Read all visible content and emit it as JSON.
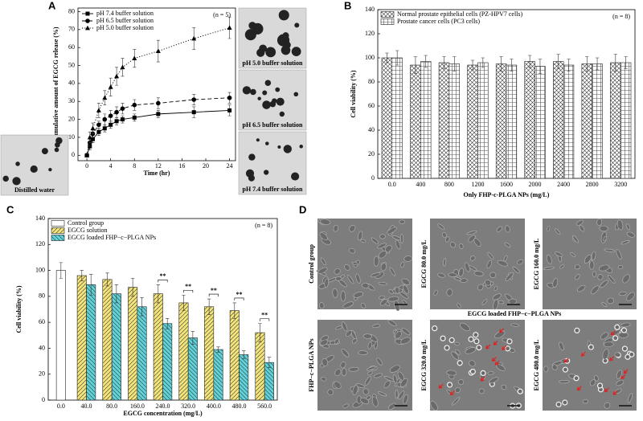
{
  "chart_data": [
    {
      "type": "line",
      "panel": "A",
      "xlabel": "Time (hr)",
      "ylabel": "Cumulative amount of EGCG release (%)",
      "note": "(n = 5)",
      "x": [
        0,
        0.5,
        1,
        2,
        3,
        4,
        5,
        6,
        8,
        12,
        18,
        24
      ],
      "xlim": [
        -1.5,
        25
      ],
      "xticks": [
        0,
        4,
        8,
        12,
        16,
        20,
        24
      ],
      "ylim": [
        -3,
        82
      ],
      "yticks": [
        0,
        10,
        20,
        30,
        40,
        50,
        60,
        70,
        80
      ],
      "legend": "upper left",
      "series": [
        {
          "name": "pH 7.4 buffer solution",
          "color": "#000000",
          "marker": "square",
          "dash": "solid",
          "values": [
            0,
            5,
            9,
            13,
            15,
            17,
            19,
            20,
            21,
            23,
            24,
            25
          ],
          "errors": [
            0,
            2,
            2,
            2,
            2,
            2,
            2,
            2,
            2,
            2,
            3,
            3
          ]
        },
        {
          "name": "pH 6.5 buffer solution",
          "color": "#000000",
          "marker": "circle",
          "dash": "dashed",
          "values": [
            0,
            7,
            12,
            17,
            20,
            22,
            24,
            26,
            28,
            29,
            31,
            32
          ],
          "errors": [
            0,
            2,
            2,
            2,
            3,
            3,
            3,
            3,
            3,
            3,
            3,
            3
          ]
        },
        {
          "name": "pH 5.0 buffer solution",
          "color": "#000000",
          "marker": "triangle",
          "dash": "dotted",
          "values": [
            0,
            10,
            15,
            25,
            32,
            38,
            44,
            49,
            54,
            58,
            65,
            71
          ],
          "errors": [
            0,
            3,
            3,
            4,
            4,
            5,
            5,
            5,
            5,
            6,
            6,
            6
          ]
        }
      ],
      "images": [
        {
          "caption": "pH 5.0 buffer solution"
        },
        {
          "caption": "pH 6.5 buffer solution"
        },
        {
          "caption": "pH 7.4 buffer solution"
        },
        {
          "caption": "Distilled water"
        }
      ]
    },
    {
      "type": "bar",
      "panel": "B",
      "xlabel": "Only FHP-c-PLGA NPs (mg/L)",
      "ylabel": "Cell viability (%)",
      "note": "(n = 8)",
      "categories": [
        "0.0",
        "400",
        "800",
        "1200",
        "1600",
        "2000",
        "2400",
        "2800",
        "3200"
      ],
      "ylim": [
        0,
        140
      ],
      "yticks": [
        0,
        20,
        40,
        60,
        80,
        100,
        120,
        140
      ],
      "legend": "upper left",
      "series": [
        {
          "name": "Normal prostate epithelial cells (PZ-HPV7 cells)",
          "color": "#ffffff",
          "hatch": "cross",
          "values": [
            100,
            94,
            96,
            94,
            95,
            97,
            97,
            95,
            96
          ],
          "errors": [
            4,
            7,
            5,
            4,
            6,
            5,
            6,
            6,
            7
          ]
        },
        {
          "name": "Prostate cancer cells (PC3 cells)",
          "color": "#ffffff",
          "hatch": "grid",
          "values": [
            100,
            97,
            95,
            96,
            94,
            93,
            94,
            95,
            96
          ],
          "errors": [
            6,
            5,
            6,
            4,
            5,
            6,
            5,
            5,
            5
          ]
        }
      ]
    },
    {
      "type": "bar",
      "panel": "C",
      "xlabel": "EGCG concentration (mg/L)",
      "ylabel": "Cell viability (%)",
      "note": "(n = 8)",
      "categories": [
        "0.0",
        "40.0",
        "80.0",
        "160.0",
        "240.0",
        "320.0",
        "400.0",
        "480.0",
        "560.0"
      ],
      "ylim": [
        0,
        140
      ],
      "yticks": [
        0,
        20,
        40,
        60,
        80,
        100,
        120,
        140
      ],
      "legend": "upper left",
      "series": [
        {
          "name": "Control group",
          "color": "#ffffff",
          "hatch": "none",
          "values": [
            100,
            null,
            null,
            null,
            null,
            null,
            null,
            null,
            null
          ],
          "errors": [
            6,
            null,
            null,
            null,
            null,
            null,
            null,
            null,
            null
          ]
        },
        {
          "name": "EGCG solution",
          "color": "#f3e57a",
          "hatch": "forward",
          "values": [
            null,
            96,
            93,
            87,
            82,
            75,
            72,
            69,
            52
          ],
          "errors": [
            null,
            4,
            5,
            7,
            7,
            6,
            6,
            6,
            7
          ]
        },
        {
          "name": "EGCG loaded FHP−c−PLGA NPs",
          "color": "#5fd3da",
          "hatch": "backward",
          "values": [
            null,
            89,
            82,
            72,
            59,
            48,
            39,
            35,
            29
          ],
          "errors": [
            null,
            8,
            7,
            7,
            4,
            5,
            2,
            3,
            4
          ]
        }
      ],
      "annotations": [
        {
          "text": "**",
          "category": "240.0"
        },
        {
          "text": "**",
          "category": "320.0"
        },
        {
          "text": "**",
          "category": "400.0"
        },
        {
          "text": "**",
          "category": "480.0"
        },
        {
          "text": "**",
          "category": "560.0"
        }
      ]
    }
  ],
  "micrographs": {
    "panel": "D",
    "heading": "EGCG loaded FHP−c−PLGA NPs",
    "images": [
      {
        "label": "Control group"
      },
      {
        "label": "EGCG 80.0 mg/L"
      },
      {
        "label": "EGCG 160.0 mg/L"
      },
      {
        "label": "FHP−c−PLGA NPs"
      },
      {
        "label": "EGCG 320.0 mg/L"
      },
      {
        "label": "EGCG 480.0 mg/L"
      }
    ]
  }
}
